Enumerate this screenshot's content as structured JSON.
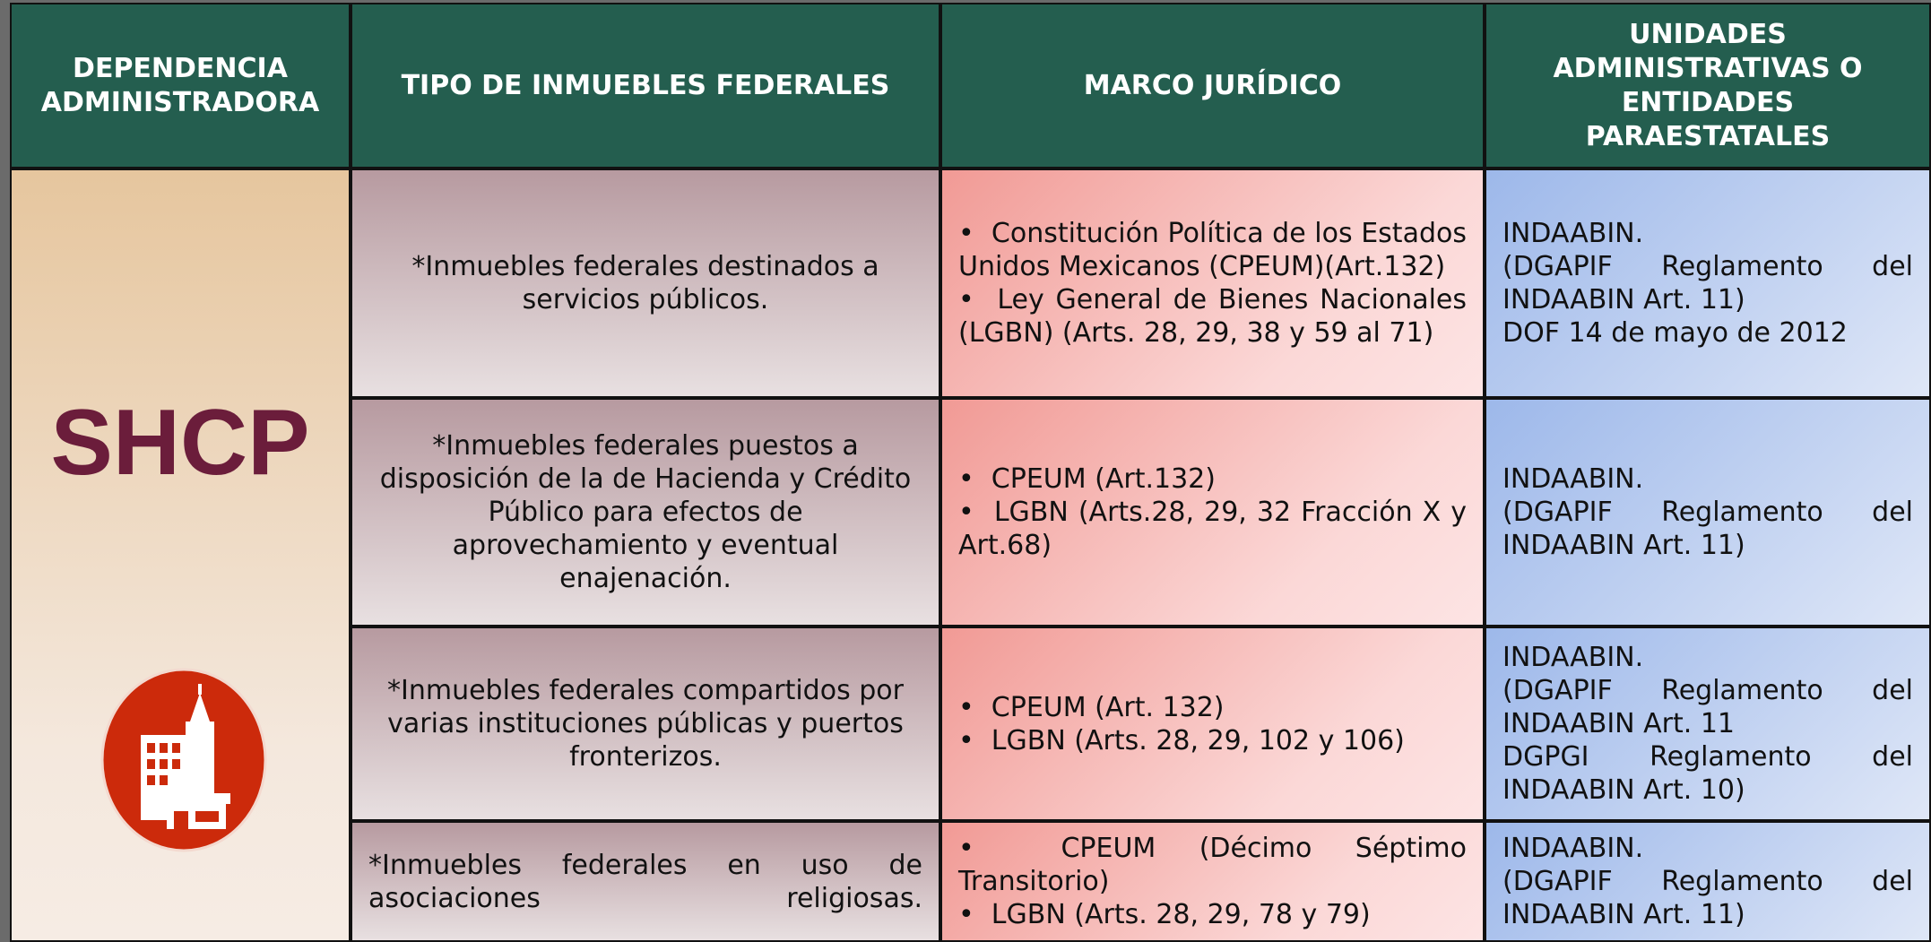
{
  "header": [
    "DEPENDENCIA ADMINISTRADORA",
    "TIPO DE INMUEBLES FEDERALES",
    "MARCO JURÍDICO",
    "UNIDADES ADMINISTRATIVAS O ENTIDADES PARAESTATALES"
  ],
  "dependencia": "SHCP",
  "rows": [
    {
      "tipo": "*Inmuebles federales destinados a servicios públicos.",
      "marco": [
        "Constitución Política de los Estados Unidos Mexicanos (CPEUM)(Art.132)",
        "Ley General de Bienes Nacionales (LGBN) (Arts. 28, 29, 38 y 59 al 71)"
      ],
      "unidades": [
        "INDAABIN.",
        "(DGAPIF Reglamento del INDAABIN Art. 11)",
        "DOF 14 de mayo de 2012"
      ]
    },
    {
      "tipo": "*Inmuebles federales puestos a disposición de la de Hacienda y Crédito Público para efectos de aprovechamiento y eventual enajenación.",
      "marco": [
        "CPEUM (Art.132)",
        "LGBN (Arts.28, 29, 32 Fracción X y Art.68)"
      ],
      "unidades": [
        "INDAABIN.",
        "(DGAPIF Reglamento del INDAABIN Art. 11)"
      ]
    },
    {
      "tipo": "*Inmuebles federales compartidos por varias instituciones públicas y puertos fronterizos.",
      "marco": [
        "CPEUM (Art. 132)",
        "LGBN (Arts. 28, 29, 102 y 106)"
      ],
      "unidades": [
        "INDAABIN.",
        "(DGAPIF Reglamento del INDAABIN Art. 11",
        "DGPGI Reglamento del INDAABIN Art. 10)"
      ]
    },
    {
      "tipo": "*Inmuebles federales en uso de asociaciones religiosas.",
      "marco": [
        "CPEUM (Décimo Séptimo Transitorio)",
        "LGBN (Arts. 28, 29, 78  y 79)"
      ],
      "unidades": [
        "INDAABIN.",
        "(DGAPIF Reglamento del INDAABIN Art. 11)"
      ]
    }
  ]
}
